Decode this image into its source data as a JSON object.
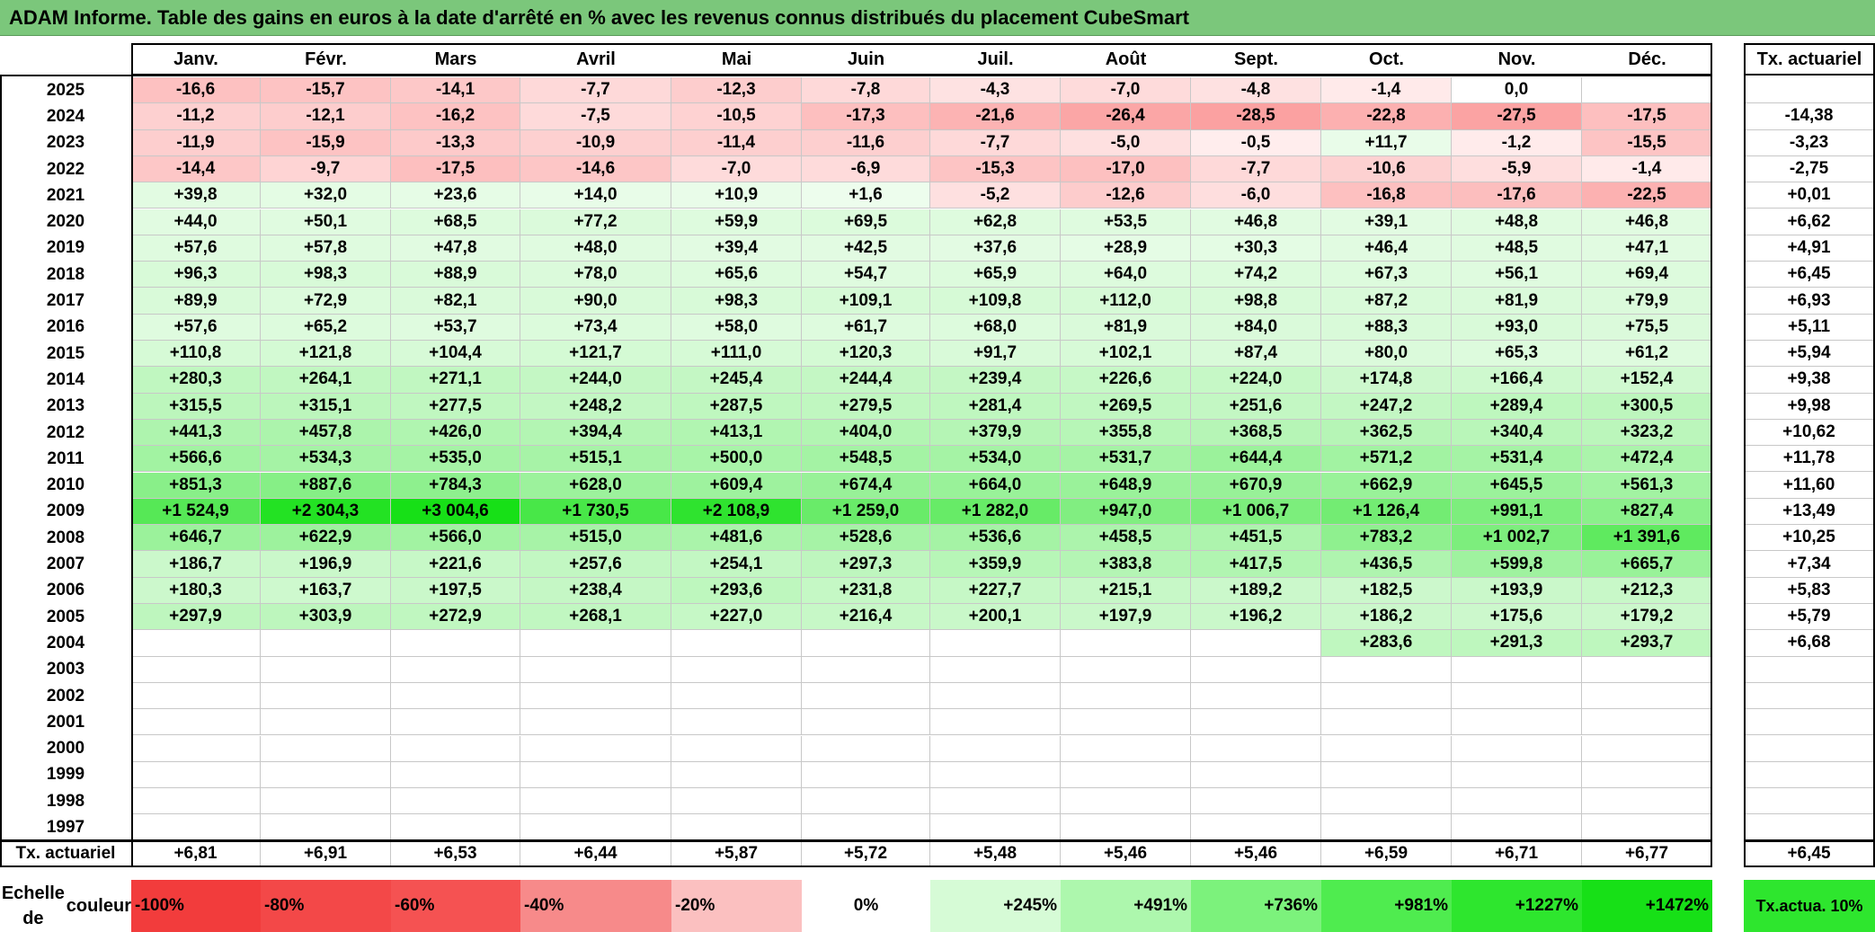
{
  "title": "ADAM Informe. Table des gains en euros à la date d'arrêté en % avec les revenus connus distribués du placement CubeSmart",
  "months": [
    "Janv.",
    "Févr.",
    "Mars",
    "Avril",
    "Mai",
    "Juin",
    "Juil.",
    "Août",
    "Sept.",
    "Oct.",
    "Nov.",
    "Déc."
  ],
  "tx_header": "Tx. actuariel",
  "rows": [
    {
      "year": "2025",
      "values": [
        "-16,6",
        "-15,7",
        "-14,1",
        "-7,7",
        "-12,3",
        "-7,8",
        "-4,3",
        "-7,0",
        "-4,8",
        "-1,4",
        "0,0",
        ""
      ],
      "tx": ""
    },
    {
      "year": "2024",
      "values": [
        "-11,2",
        "-12,1",
        "-16,2",
        "-7,5",
        "-10,5",
        "-17,3",
        "-21,6",
        "-26,4",
        "-28,5",
        "-22,8",
        "-27,5",
        "-17,5"
      ],
      "tx": "-14,38"
    },
    {
      "year": "2023",
      "values": [
        "-11,9",
        "-15,9",
        "-13,3",
        "-10,9",
        "-11,4",
        "-11,6",
        "-7,7",
        "-5,0",
        "-0,5",
        "+11,7",
        "-1,2",
        "-15,5"
      ],
      "tx": "-3,23"
    },
    {
      "year": "2022",
      "values": [
        "-14,4",
        "-9,7",
        "-17,5",
        "-14,6",
        "-7,0",
        "-6,9",
        "-15,3",
        "-17,0",
        "-7,7",
        "-10,6",
        "-5,9",
        "-1,4"
      ],
      "tx": "-2,75"
    },
    {
      "year": "2021",
      "values": [
        "+39,8",
        "+32,0",
        "+23,6",
        "+14,0",
        "+10,9",
        "+1,6",
        "-5,2",
        "-12,6",
        "-6,0",
        "-16,8",
        "-17,6",
        "-22,5"
      ],
      "tx": "+0,01"
    },
    {
      "year": "2020",
      "values": [
        "+44,0",
        "+50,1",
        "+68,5",
        "+77,2",
        "+59,9",
        "+69,5",
        "+62,8",
        "+53,5",
        "+46,8",
        "+39,1",
        "+48,8",
        "+46,8"
      ],
      "tx": "+6,62"
    },
    {
      "year": "2019",
      "values": [
        "+57,6",
        "+57,8",
        "+47,8",
        "+48,0",
        "+39,4",
        "+42,5",
        "+37,6",
        "+28,9",
        "+30,3",
        "+46,4",
        "+48,5",
        "+47,1"
      ],
      "tx": "+4,91"
    },
    {
      "year": "2018",
      "values": [
        "+96,3",
        "+98,3",
        "+88,9",
        "+78,0",
        "+65,6",
        "+54,7",
        "+65,9",
        "+64,0",
        "+74,2",
        "+67,3",
        "+56,1",
        "+69,4"
      ],
      "tx": "+6,45"
    },
    {
      "year": "2017",
      "values": [
        "+89,9",
        "+72,9",
        "+82,1",
        "+90,0",
        "+98,3",
        "+109,1",
        "+109,8",
        "+112,0",
        "+98,8",
        "+87,2",
        "+81,9",
        "+79,9"
      ],
      "tx": "+6,93"
    },
    {
      "year": "2016",
      "values": [
        "+57,6",
        "+65,2",
        "+53,7",
        "+73,4",
        "+58,0",
        "+61,7",
        "+68,0",
        "+81,9",
        "+84,0",
        "+88,3",
        "+93,0",
        "+75,5"
      ],
      "tx": "+5,11"
    },
    {
      "year": "2015",
      "values": [
        "+110,8",
        "+121,8",
        "+104,4",
        "+121,7",
        "+111,0",
        "+120,3",
        "+91,7",
        "+102,1",
        "+87,4",
        "+80,0",
        "+65,3",
        "+61,2"
      ],
      "tx": "+5,94"
    },
    {
      "year": "2014",
      "values": [
        "+280,3",
        "+264,1",
        "+271,1",
        "+244,0",
        "+245,4",
        "+244,4",
        "+239,4",
        "+226,6",
        "+224,0",
        "+174,8",
        "+166,4",
        "+152,4"
      ],
      "tx": "+9,38"
    },
    {
      "year": "2013",
      "values": [
        "+315,5",
        "+315,1",
        "+277,5",
        "+248,2",
        "+287,5",
        "+279,5",
        "+281,4",
        "+269,5",
        "+251,6",
        "+247,2",
        "+289,4",
        "+300,5"
      ],
      "tx": "+9,98"
    },
    {
      "year": "2012",
      "values": [
        "+441,3",
        "+457,8",
        "+426,0",
        "+394,4",
        "+413,1",
        "+404,0",
        "+379,9",
        "+355,8",
        "+368,5",
        "+362,5",
        "+340,4",
        "+323,2"
      ],
      "tx": "+10,62"
    },
    {
      "year": "2011",
      "values": [
        "+566,6",
        "+534,3",
        "+535,0",
        "+515,1",
        "+500,0",
        "+548,5",
        "+534,0",
        "+531,7",
        "+644,4",
        "+571,2",
        "+531,4",
        "+472,4"
      ],
      "tx": "+11,78"
    },
    {
      "year": "2010",
      "values": [
        "+851,3",
        "+887,6",
        "+784,3",
        "+628,0",
        "+609,4",
        "+674,4",
        "+664,0",
        "+648,9",
        "+670,9",
        "+662,9",
        "+645,5",
        "+561,3"
      ],
      "tx": "+11,60"
    },
    {
      "year": "2009",
      "values": [
        "+1 524,9",
        "+2 304,3",
        "+3 004,6",
        "+1 730,5",
        "+2 108,9",
        "+1 259,0",
        "+1 282,0",
        "+947,0",
        "+1 006,7",
        "+1 126,4",
        "+991,1",
        "+827,4"
      ],
      "tx": "+13,49"
    },
    {
      "year": "2008",
      "values": [
        "+646,7",
        "+622,9",
        "+566,0",
        "+515,0",
        "+481,6",
        "+528,6",
        "+536,6",
        "+458,5",
        "+451,5",
        "+783,2",
        "+1 002,7",
        "+1 391,6"
      ],
      "tx": "+10,25"
    },
    {
      "year": "2007",
      "values": [
        "+186,7",
        "+196,9",
        "+221,6",
        "+257,6",
        "+254,1",
        "+297,3",
        "+359,9",
        "+383,8",
        "+417,5",
        "+436,5",
        "+599,8",
        "+665,7"
      ],
      "tx": "+7,34"
    },
    {
      "year": "2006",
      "values": [
        "+180,3",
        "+163,7",
        "+197,5",
        "+238,4",
        "+293,6",
        "+231,8",
        "+227,7",
        "+215,1",
        "+189,2",
        "+182,5",
        "+193,9",
        "+212,3"
      ],
      "tx": "+5,83"
    },
    {
      "year": "2005",
      "values": [
        "+297,9",
        "+303,9",
        "+272,9",
        "+268,1",
        "+227,0",
        "+216,4",
        "+200,1",
        "+197,9",
        "+196,2",
        "+186,2",
        "+175,6",
        "+179,2"
      ],
      "tx": "+5,79"
    },
    {
      "year": "2004",
      "values": [
        "",
        "",
        "",
        "",
        "",
        "",
        "",
        "",
        "",
        "+283,6",
        "+291,3",
        "+293,7"
      ],
      "tx": "+6,68"
    },
    {
      "year": "2003",
      "values": [
        "",
        "",
        "",
        "",
        "",
        "",
        "",
        "",
        "",
        "",
        "",
        ""
      ],
      "tx": ""
    },
    {
      "year": "2002",
      "values": [
        "",
        "",
        "",
        "",
        "",
        "",
        "",
        "",
        "",
        "",
        "",
        ""
      ],
      "tx": ""
    },
    {
      "year": "2001",
      "values": [
        "",
        "",
        "",
        "",
        "",
        "",
        "",
        "",
        "",
        "",
        "",
        ""
      ],
      "tx": ""
    },
    {
      "year": "2000",
      "values": [
        "",
        "",
        "",
        "",
        "",
        "",
        "",
        "",
        "",
        "",
        "",
        ""
      ],
      "tx": ""
    },
    {
      "year": "1999",
      "values": [
        "",
        "",
        "",
        "",
        "",
        "",
        "",
        "",
        "",
        "",
        "",
        ""
      ],
      "tx": ""
    },
    {
      "year": "1998",
      "values": [
        "",
        "",
        "",
        "",
        "",
        "",
        "",
        "",
        "",
        "",
        "",
        ""
      ],
      "tx": ""
    },
    {
      "year": "1997",
      "values": [
        "",
        "",
        "",
        "",
        "",
        "",
        "",
        "",
        "",
        "",
        "",
        ""
      ],
      "tx": ""
    }
  ],
  "footer": {
    "label": "Tx. actuariel",
    "values": [
      "+6,81",
      "+6,91",
      "+6,53",
      "+6,44",
      "+5,87",
      "+5,72",
      "+5,48",
      "+5,46",
      "+5,46",
      "+6,59",
      "+6,71",
      "+6,77"
    ],
    "tx": "+6,45"
  },
  "scale": {
    "label_line1": "Echelle de",
    "label_line2": "couleur",
    "cells": [
      {
        "text": "-100%",
        "color": "#f23c3c"
      },
      {
        "text": "-80%",
        "color": "#f34848"
      },
      {
        "text": "-60%",
        "color": "#f55252"
      },
      {
        "text": "-40%",
        "color": "#f78a8a"
      },
      {
        "text": "-20%",
        "color": "#fbc0c0"
      },
      {
        "text": "0%",
        "color": "#ffffff"
      },
      {
        "text": "+245%",
        "color": "#d6fbd6"
      },
      {
        "text": "+491%",
        "color": "#adf7ad"
      },
      {
        "text": "+736%",
        "color": "#7cf27c"
      },
      {
        "text": "+981%",
        "color": "#4fec4f"
      },
      {
        "text": "+1227%",
        "color": "#2ee62e"
      },
      {
        "text": "+1472%",
        "color": "#17e017"
      }
    ],
    "tx_line1": "Tx.",
    "tx_line2": "actua. 10%",
    "tx_color": "#2ee62e"
  },
  "colors": {
    "title_bg": "#7bc77b",
    "neg_full": "#f23c3c",
    "pos_full": "#17e017",
    "pos_light": "#eefdee"
  }
}
